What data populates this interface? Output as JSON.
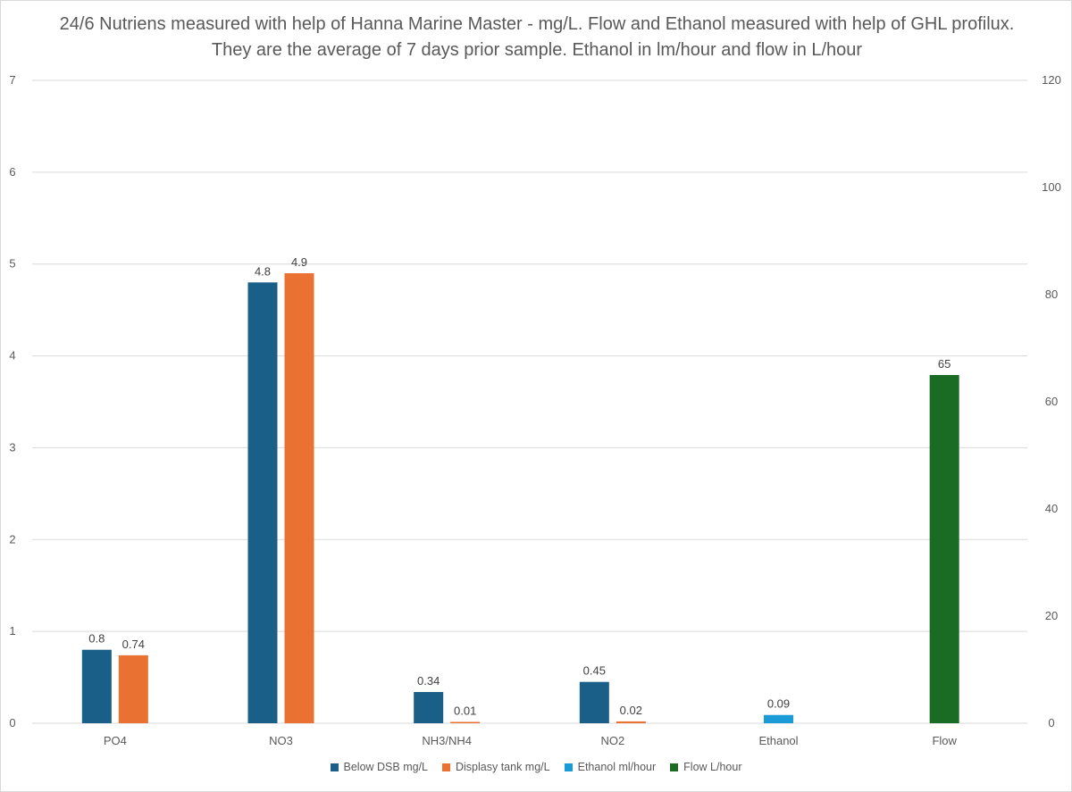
{
  "chart_data": {
    "type": "bar",
    "title": "24/6 Nutriens measured with help of Hanna Marine Master - mg/L. Flow and Ethanol measured with help of GHL profilux. They are the average of 7 days prior sample. Ethanol in lm/hour and flow in L/hour",
    "categories": [
      "PO4",
      "NO3",
      "NH3/NH4",
      "NO2",
      "Ethanol",
      "Flow"
    ],
    "y_left": {
      "ylim": [
        0,
        7
      ],
      "ticks": [
        "0",
        "1",
        "2",
        "3",
        "4",
        "5",
        "6",
        "7"
      ]
    },
    "y_right": {
      "ylim": [
        0,
        120
      ],
      "ticks": [
        "0",
        "20",
        "40",
        "60",
        "80",
        "100",
        "120"
      ]
    },
    "grid": true,
    "legend_position": "bottom",
    "series": [
      {
        "name": "Below DSB mg/L",
        "color": "#1a5f87",
        "axis": "left",
        "values": [
          0.8,
          4.8,
          0.34,
          0.45,
          null,
          null
        ],
        "labels": [
          "0.8",
          "4.8",
          "0.34",
          "0.45",
          "",
          ""
        ]
      },
      {
        "name": "Displasy tank mg/L",
        "color": "#e97132",
        "axis": "left",
        "values": [
          0.74,
          4.9,
          0.01,
          0.02,
          null,
          null
        ],
        "labels": [
          "0.74",
          "4.9",
          "0.01",
          "0.02",
          "",
          ""
        ]
      },
      {
        "name": "Ethanol ml/hour",
        "color": "#1a9ad6",
        "axis": "left",
        "values": [
          null,
          null,
          null,
          null,
          0.09,
          null
        ],
        "labels": [
          "",
          "",
          "",
          "",
          "0.09",
          ""
        ]
      },
      {
        "name": "Flow L/hour",
        "color": "#1a6b24",
        "axis": "right",
        "values": [
          null,
          null,
          null,
          null,
          null,
          65
        ],
        "labels": [
          "",
          "",
          "",
          "",
          "",
          "65"
        ]
      }
    ]
  }
}
